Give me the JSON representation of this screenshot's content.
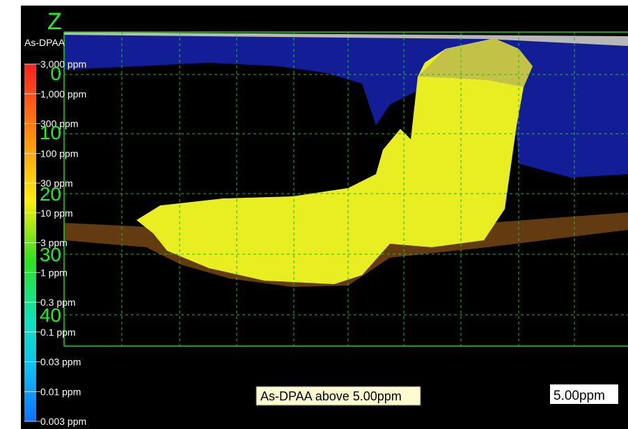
{
  "legend": {
    "title": "As-DPAA",
    "labels": [
      "3,000 ppm",
      "1,000 ppm",
      "300 ppm",
      "100 ppm",
      "30 ppm",
      "10 ppm",
      "3 ppm",
      "1 ppm",
      "0.3 ppm",
      "0.1 ppm",
      "0.03 ppm",
      "0.01 ppm",
      "0.003 ppm"
    ]
  },
  "axis": {
    "title": "Z",
    "labels": [
      "0",
      "10",
      "20",
      "30",
      "40"
    ]
  },
  "caption": "As-DPAA above 5.00ppm",
  "threshold": "5.00ppm"
}
